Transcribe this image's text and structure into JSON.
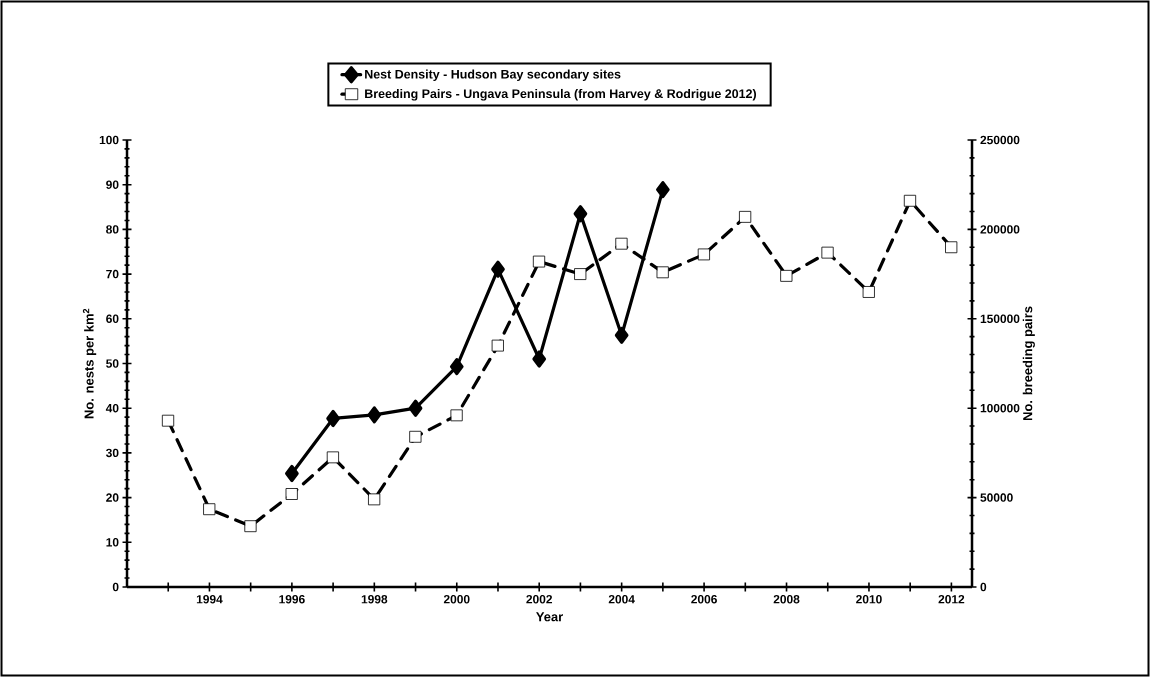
{
  "chart_data": {
    "type": "line",
    "xlabel": "Year",
    "ylabel": "No. nests per km$^{2}$",
    "y2label": "No. breeding pairs",
    "xlim": [
      1992,
      2012.5
    ],
    "xticks": [
      {
        "value": 1993,
        "label": null
      },
      1994,
      {
        "value": 1995,
        "label": null
      },
      1996,
      {
        "value": 1997,
        "label": null
      },
      1998,
      {
        "value": 1999,
        "label": null
      },
      2000,
      {
        "value": 2001,
        "label": null
      },
      2002,
      {
        "value": 2003,
        "label": null
      },
      2004,
      {
        "value": 2005,
        "label": null
      },
      2006,
      {
        "value": 2007,
        "label": null
      },
      2008,
      {
        "value": 2009,
        "label": null
      },
      2010,
      {
        "value": 2011,
        "label": null
      },
      2012
    ],
    "ylim": [
      0,
      100
    ],
    "yticks": [
      0,
      10,
      20,
      30,
      40,
      50,
      60,
      70,
      80,
      90,
      100
    ],
    "y2lim": [
      0,
      250000
    ],
    "y2ticks": [
      0,
      50000,
      100000,
      150000,
      200000,
      250000
    ],
    "legend": "top",
    "series": [
      {
        "name": "Nest Density - Hudson Bay secondary sites",
        "color": "#000000",
        "marker": "diamond",
        "line_style": "solid",
        "x": [
          1996,
          1997,
          1998,
          1999,
          2000,
          2001,
          2002,
          2003,
          2004,
          2005
        ],
        "values": [
          25.4,
          37.7,
          38.5,
          40.0,
          49.3,
          71.1,
          51.0,
          83.5,
          56.3,
          88.9
        ]
      },
      {
        "name": "Breeding Pairs - Ungava Peninsula (from Harvey & Rodrigue 2012)",
        "color": "#000000",
        "marker": "square",
        "line_style": "dashed",
        "axis": "y2",
        "x": [
          1993,
          1994,
          1995,
          1996,
          1997,
          1998,
          1999,
          2000,
          2001,
          2002,
          2003,
          2004,
          2005,
          2006,
          2007,
          2008,
          2009,
          2010,
          2011,
          2012
        ],
        "values": [
          93000,
          43500,
          34000,
          52000,
          72500,
          49000,
          84000,
          96000,
          135000,
          182000,
          175000,
          192000,
          176000,
          186000,
          207000,
          174000,
          187000,
          165000,
          216000,
          190000
        ]
      }
    ]
  }
}
